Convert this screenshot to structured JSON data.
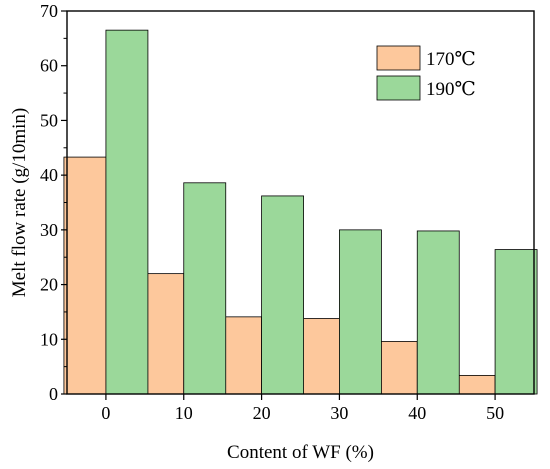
{
  "chart_data": {
    "type": "bar",
    "title": "",
    "xlabel": "Content of WF (%)",
    "ylabel": "Melt flow rate (g/10min)",
    "categories": [
      "0",
      "10",
      "20",
      "30",
      "40",
      "50"
    ],
    "ylim": [
      0,
      70
    ],
    "yticks": [
      0,
      10,
      20,
      30,
      40,
      50,
      60,
      70
    ],
    "grid": false,
    "legend_position": "top-right",
    "series": [
      {
        "name": "170℃",
        "color": "#fdc89c",
        "values": [
          43.3,
          22.0,
          14.1,
          13.8,
          9.6,
          3.4
        ]
      },
      {
        "name": "190℃",
        "color": "#9bd89a",
        "values": [
          66.5,
          38.6,
          36.2,
          30.0,
          29.8,
          26.4
        ]
      }
    ]
  }
}
